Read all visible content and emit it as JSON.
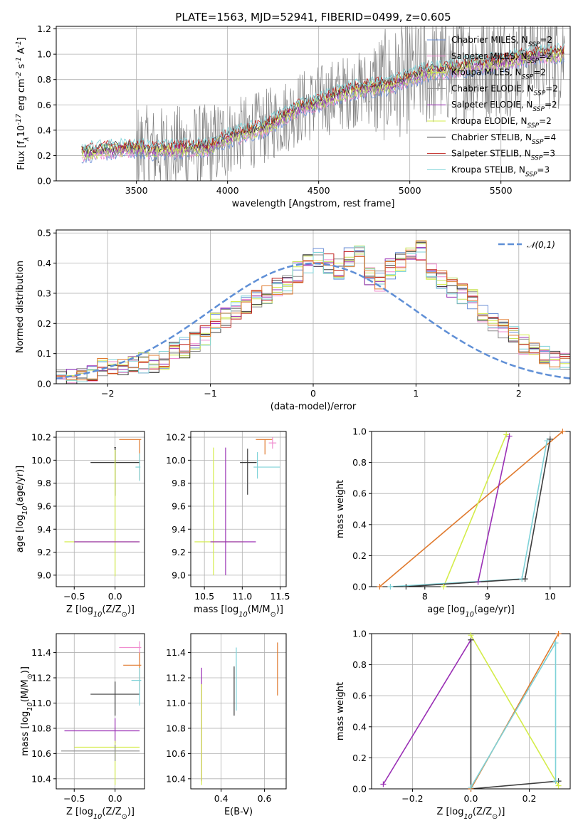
{
  "colors": {
    "c_miles": "#6b8fd6",
    "s_miles": "#f08ccf",
    "k_miles": "#c8e25a",
    "c_elodie": "#8a8a8a",
    "s_elodie": "#9a2fb5",
    "k_elodie": "#d4ec4a",
    "c_stelib": "#3d3d3d",
    "s_stelib": "#c0201c",
    "k_stelib": "#7ed2d8",
    "orange": "#e07a2e",
    "normal": "#5f8fd6"
  },
  "chart_data": [
    {
      "type": "line",
      "title": "PLATE=1563, MJD=52941, FIBERID=0499, z=0.605",
      "xlabel": "wavelength [Angstrom, rest frame]",
      "ylabel": "Flux [f$_\\lambda$10$^{-17}$ erg cm$^{-2}$ s$^{-1}$ A$^{-1}$]",
      "xlim": [
        3060,
        5880
      ],
      "ylim": [
        0,
        1.22
      ],
      "xticks": [
        "3500",
        "4000",
        "4500",
        "5000",
        "5500"
      ],
      "yticks": [
        "0.0",
        "0.2",
        "0.4",
        "0.6",
        "0.8",
        "1.0",
        "1.2"
      ],
      "legend_position": "upper-right",
      "series": [
        {
          "name": "Chabrier MILES, N$_{SSP}$=2",
          "color_key": "c_miles"
        },
        {
          "name": "Salpeter MILES, N$_{SSP}$=2",
          "color_key": "s_miles"
        },
        {
          "name": "Kroupa MILES, N$_{SSP}$=2",
          "color_key": "k_miles"
        },
        {
          "name": "Chabrier ELODIE, N$_{SSP}$=2",
          "color_key": "c_elodie"
        },
        {
          "name": "Salpeter ELODIE, N$_{SSP}$=2",
          "color_key": "s_elodie"
        },
        {
          "name": "Kroupa ELODIE, N$_{SSP}$=2",
          "color_key": "k_elodie"
        },
        {
          "name": "Chabrier STELIB, N$_{SSP}$=4",
          "color_key": "c_stelib"
        },
        {
          "name": "Salpeter STELIB, N$_{SSP}$=3",
          "color_key": "s_stelib"
        },
        {
          "name": "Kroupa STELIB, N$_{SSP}$=3",
          "color_key": "k_stelib"
        }
      ],
      "model_shape": [
        [
          3200,
          0.22
        ],
        [
          3300,
          0.24
        ],
        [
          3400,
          0.25
        ],
        [
          3500,
          0.26
        ],
        [
          3600,
          0.24
        ],
        [
          3700,
          0.25
        ],
        [
          3800,
          0.26
        ],
        [
          3900,
          0.26
        ],
        [
          4000,
          0.34
        ],
        [
          4100,
          0.38
        ],
        [
          4200,
          0.42
        ],
        [
          4300,
          0.5
        ],
        [
          4400,
          0.58
        ],
        [
          4500,
          0.62
        ],
        [
          4600,
          0.68
        ],
        [
          4700,
          0.72
        ],
        [
          4800,
          0.74
        ],
        [
          4900,
          0.76
        ],
        [
          5000,
          0.82
        ],
        [
          5100,
          0.86
        ],
        [
          5200,
          0.88
        ],
        [
          5300,
          0.9
        ],
        [
          5400,
          0.92
        ],
        [
          5500,
          0.94
        ],
        [
          5600,
          0.97
        ],
        [
          5700,
          1.0
        ]
      ]
    },
    {
      "type": "line",
      "xlabel": "(data-model)/error",
      "ylabel": "Normed distribution",
      "xlim": [
        -2.5,
        2.5
      ],
      "ylim": [
        0,
        0.51
      ],
      "xticks": [
        "−2",
        "−1",
        "0",
        "1",
        "2"
      ],
      "yticks": [
        "0.0",
        "0.1",
        "0.2",
        "0.3",
        "0.4",
        "0.5"
      ],
      "legend": "$\\mathcal{N}(0,1)$",
      "legend_position": "upper-right",
      "bin_width": 0.1,
      "x_start": -2.5,
      "hist_values": [
        0.02,
        0.03,
        0.03,
        0.04,
        0.05,
        0.06,
        0.05,
        0.06,
        0.07,
        0.07,
        0.08,
        0.11,
        0.12,
        0.14,
        0.16,
        0.2,
        0.22,
        0.24,
        0.26,
        0.28,
        0.3,
        0.32,
        0.33,
        0.37,
        0.4,
        0.42,
        0.4,
        0.38,
        0.42,
        0.44,
        0.36,
        0.34,
        0.38,
        0.4,
        0.43,
        0.44,
        0.38,
        0.34,
        0.32,
        0.3,
        0.28,
        0.24,
        0.2,
        0.18,
        0.16,
        0.13,
        0.11,
        0.09,
        0.08,
        0.07
      ]
    },
    {
      "type": "scatter",
      "xlabel": "Z [log$_{10}$(Z/Z$_\\odot$)]",
      "ylabel": "age  [log$_{10}$(age/yr)]",
      "xlim": [
        -0.72,
        0.36
      ],
      "ylim": [
        8.9,
        10.25
      ],
      "xticks": [
        "−0.5",
        "0.0"
      ],
      "yticks": [
        "9.0",
        "9.2",
        "9.4",
        "9.6",
        "9.8",
        "10.0",
        "10.2"
      ],
      "points": [
        {
          "x": 0.0,
          "y": 10.11,
          "xerr": [
            0.01,
            0.01
          ],
          "yerr": [
            0.42,
            0.0
          ],
          "c": "c_stelib"
        },
        {
          "x": 0.0,
          "y": 9.98,
          "xerr": [
            0.3,
            0.3
          ],
          "yerr": [
            0.0,
            0.13
          ],
          "c": "c_stelib"
        },
        {
          "x": 0.3,
          "y": 10.18,
          "xerr": [
            0.25,
            0.02
          ],
          "yerr": [
            0.35,
            0.0
          ],
          "c": "orange"
        },
        {
          "x": 0.3,
          "y": 9.94,
          "xerr": [
            0.05,
            0.01
          ],
          "yerr": [
            0.12,
            0.12
          ],
          "c": "k_stelib"
        },
        {
          "x": 0.0,
          "y": 9.29,
          "xerr": [
            0.62,
            0.3
          ],
          "yerr": [
            0.3,
            0.8
          ],
          "c": "k_elodie"
        },
        {
          "x": 0.0,
          "y": 9.29,
          "xerr": [
            0.5,
            0.3
          ],
          "yerr": [
            0.0,
            0.0
          ],
          "c": "s_elodie"
        }
      ]
    },
    {
      "type": "scatter",
      "xlabel": "mass [log$_{10}$(M/M$_\\odot$)]",
      "ylabel": "",
      "xlim": [
        10.32,
        11.58
      ],
      "ylim": [
        8.9,
        10.25
      ],
      "xticks": [
        "10.5",
        "11.0",
        "11.5"
      ],
      "yticks": [
        "9.0",
        "9.2",
        "9.4",
        "9.6",
        "9.8",
        "10.0",
        "10.2"
      ],
      "points": [
        {
          "x": 10.62,
          "y": 9.29,
          "xerr": [
            0.25,
            0.4
          ],
          "yerr": [
            0.29,
            0.82
          ],
          "c": "k_elodie"
        },
        {
          "x": 10.78,
          "y": 9.29,
          "xerr": [
            0.2,
            0.4
          ],
          "yerr": [
            0.29,
            0.82
          ],
          "c": "s_elodie"
        },
        {
          "x": 11.07,
          "y": 9.98,
          "xerr": [
            0.1,
            0.12
          ],
          "yerr": [
            0.28,
            0.12
          ],
          "c": "c_stelib"
        },
        {
          "x": 11.3,
          "y": 10.18,
          "xerr": [
            0.12,
            0.1
          ],
          "yerr": [
            0.13,
            0.0
          ],
          "c": "orange"
        },
        {
          "x": 11.2,
          "y": 9.94,
          "xerr": [
            0.05,
            0.3
          ],
          "yerr": [
            0.1,
            0.13
          ],
          "c": "k_stelib"
        },
        {
          "x": 11.4,
          "y": 10.15,
          "xerr": [
            0.05,
            0.05
          ],
          "yerr": [
            0.05,
            0.05
          ],
          "c": "s_miles"
        }
      ]
    },
    {
      "type": "line",
      "xlabel": "age  [log$_{10}$(age/yr)]",
      "ylabel": "mass weight",
      "xlim": [
        7.15,
        10.32
      ],
      "ylim": [
        0,
        1.0
      ],
      "xticks": [
        "8",
        "9",
        "10"
      ],
      "yticks": [
        "0.0",
        "0.2",
        "0.4",
        "0.6",
        "0.8",
        "1.0"
      ],
      "lines": [
        {
          "c": "orange",
          "pts": [
            [
              7.28,
              0.0
            ],
            [
              10.2,
              1.0
            ]
          ]
        },
        {
          "c": "k_elodie",
          "pts": [
            [
              8.3,
              0.0
            ],
            [
              9.3,
              0.98
            ]
          ]
        },
        {
          "c": "s_elodie",
          "pts": [
            [
              8.85,
              0.03
            ],
            [
              9.35,
              0.97
            ]
          ]
        },
        {
          "c": "k_stelib",
          "pts": [
            [
              7.45,
              0.0
            ],
            [
              9.55,
              0.05
            ],
            [
              9.95,
              0.94
            ]
          ]
        },
        {
          "c": "c_stelib",
          "pts": [
            [
              7.7,
              0.0
            ],
            [
              9.6,
              0.05
            ],
            [
              10.0,
              0.95
            ]
          ]
        }
      ]
    },
    {
      "type": "scatter",
      "xlabel": "Z [log$_{10}$(Z/Z$_\\odot$)]",
      "ylabel": "mass [log$_{10}$(M/M$_\\odot$)]",
      "xlim": [
        -0.72,
        0.36
      ],
      "ylim": [
        10.32,
        11.55
      ],
      "xticks": [
        "−0.5",
        "0.0"
      ],
      "yticks": [
        "10.4",
        "10.6",
        "10.8",
        "11.0",
        "11.2",
        "11.4"
      ],
      "points": [
        {
          "x": 0.0,
          "y": 11.07,
          "xerr": [
            0.3,
            0.3
          ],
          "yerr": [
            0.17,
            0.1
          ],
          "c": "c_stelib"
        },
        {
          "x": 0.0,
          "y": 10.78,
          "xerr": [
            0.62,
            0.3
          ],
          "yerr": [
            0.1,
            0.1
          ],
          "c": "s_elodie"
        },
        {
          "x": 0.0,
          "y": 10.65,
          "xerr": [
            0.5,
            0.3
          ],
          "yerr": [
            0.3,
            0.05
          ],
          "c": "k_elodie"
        },
        {
          "x": 0.0,
          "y": 10.62,
          "xerr": [
            0.66,
            0.3
          ],
          "yerr": [
            0.08,
            0.05
          ],
          "c": "c_elodie"
        },
        {
          "x": 0.3,
          "y": 11.44,
          "xerr": [
            0.25,
            0.02
          ],
          "yerr": [
            0.1,
            0.05
          ],
          "c": "s_miles"
        },
        {
          "x": 0.3,
          "y": 11.3,
          "xerr": [
            0.2,
            0.02
          ],
          "yerr": [
            0.2,
            0.1
          ],
          "c": "orange"
        },
        {
          "x": 0.3,
          "y": 11.18,
          "xerr": [
            0.1,
            0.02
          ],
          "yerr": [
            0.2,
            0.1
          ],
          "c": "k_stelib"
        }
      ]
    },
    {
      "type": "scatter",
      "xlabel": "E(B-V)",
      "ylabel": "",
      "xlim": [
        0.26,
        0.7
      ],
      "ylim": [
        10.32,
        11.55
      ],
      "xticks": [
        "0.4",
        "0.6"
      ],
      "yticks": [
        "10.4",
        "10.6",
        "10.8",
        "11.0",
        "11.2",
        "11.4"
      ],
      "points": [
        {
          "x": 0.31,
          "y": 10.78,
          "xerr": [
            0.0,
            0.0
          ],
          "yerr": [
            0.4,
            0.5
          ],
          "c": "s_elodie"
        },
        {
          "x": 0.31,
          "y": 10.65,
          "xerr": [
            0.0,
            0.0
          ],
          "yerr": [
            0.3,
            0.5
          ],
          "c": "k_elodie"
        },
        {
          "x": 0.46,
          "y": 11.07,
          "xerr": [
            0.0,
            0.0
          ],
          "yerr": [
            0.17,
            0.22
          ],
          "c": "c_stelib"
        },
        {
          "x": 0.47,
          "y": 11.18,
          "xerr": [
            0.0,
            0.0
          ],
          "yerr": [
            0.24,
            0.26
          ],
          "c": "k_stelib"
        },
        {
          "x": 0.66,
          "y": 11.3,
          "xerr": [
            0.0,
            0.0
          ],
          "yerr": [
            0.24,
            0.18
          ],
          "c": "orange"
        }
      ]
    },
    {
      "type": "line",
      "xlabel": "Z [log$_{10}$(Z/Z$_\\odot$)]",
      "ylabel": "mass weight",
      "xlim": [
        -0.34,
        0.34
      ],
      "ylim": [
        0,
        1.0
      ],
      "xticks": [
        "−0.2",
        "0.0",
        "0.2"
      ],
      "yticks": [
        "0.0",
        "0.2",
        "0.4",
        "0.6",
        "0.8",
        "1.0"
      ],
      "lines": [
        {
          "c": "s_elodie",
          "pts": [
            [
              -0.3,
              0.03
            ],
            [
              0.0,
              0.96
            ]
          ]
        },
        {
          "c": "c_stelib",
          "pts": [
            [
              0.0,
              0.96
            ],
            [
              0.0,
              0.0
            ],
            [
              0.3,
              0.05
            ]
          ]
        },
        {
          "c": "k_elodie",
          "pts": [
            [
              0.0,
              0.99
            ],
            [
              0.3,
              0.02
            ]
          ]
        },
        {
          "c": "orange",
          "pts": [
            [
              0.0,
              0.0
            ],
            [
              0.3,
              1.0
            ]
          ]
        },
        {
          "c": "k_stelib",
          "pts": [
            [
              0.0,
              0.01
            ],
            [
              0.29,
              0.94
            ],
            [
              0.29,
              0.05
            ]
          ]
        }
      ]
    }
  ]
}
